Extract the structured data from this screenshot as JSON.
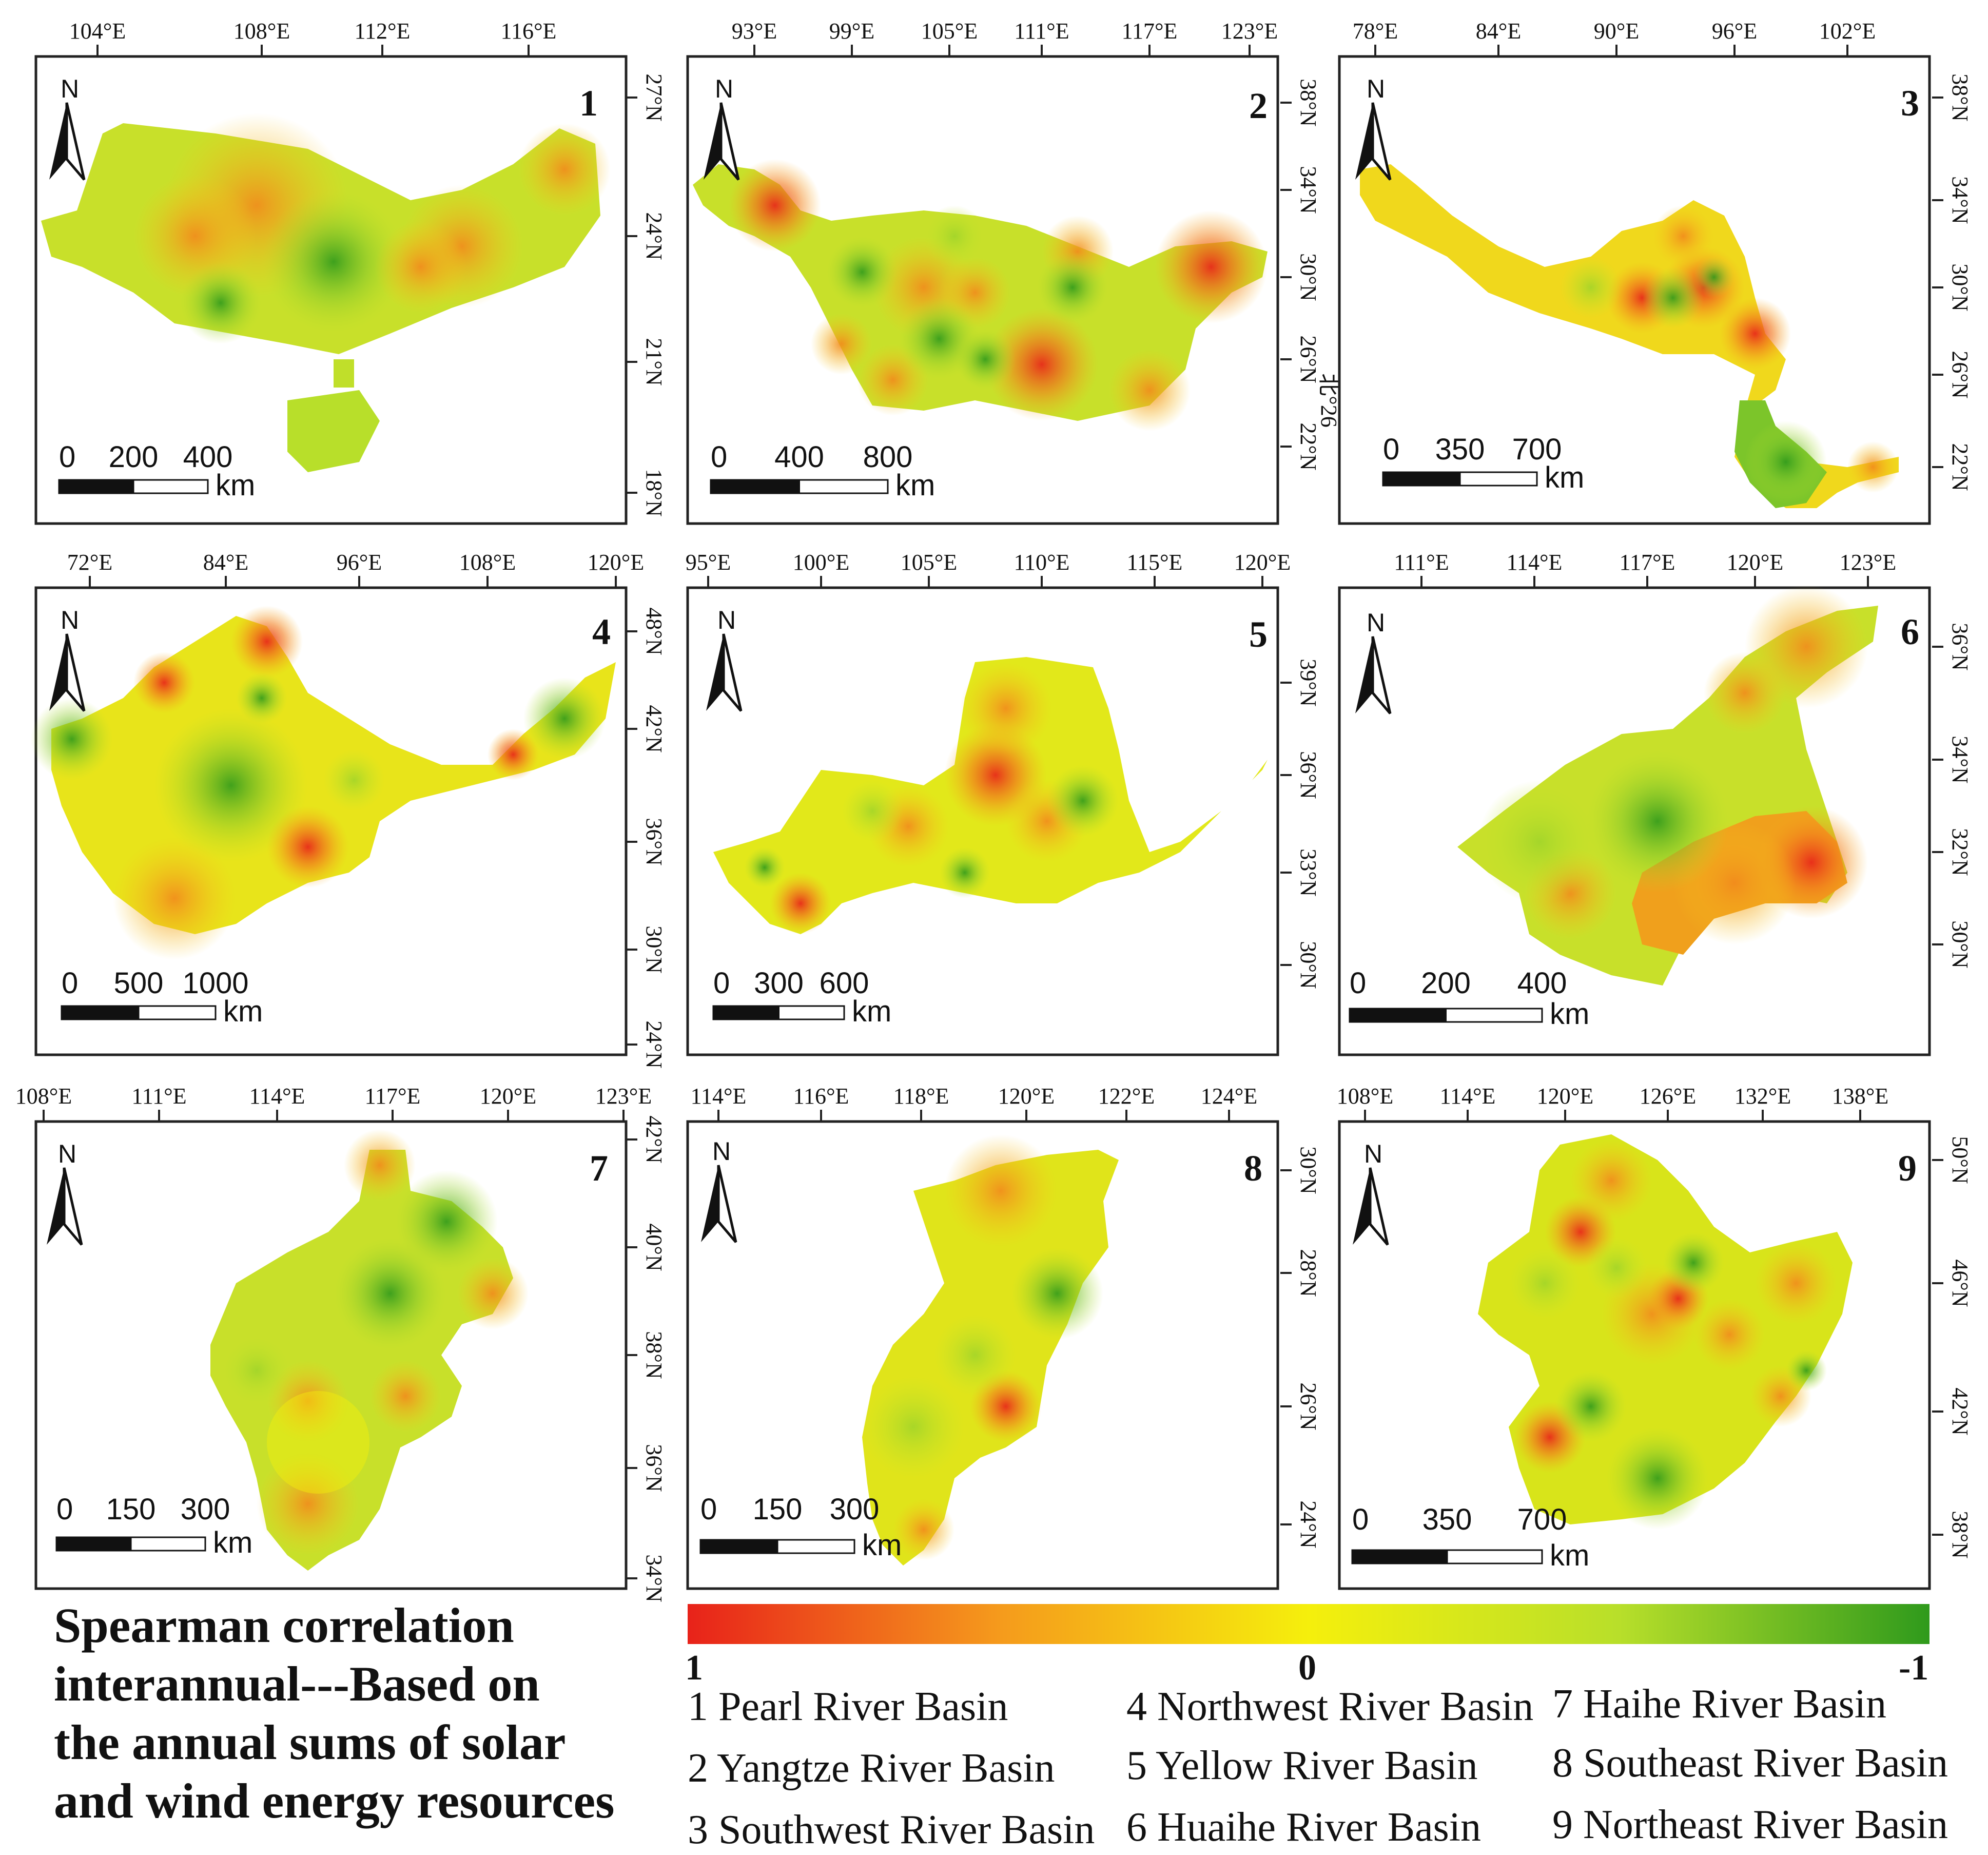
{
  "colors": {
    "positive": "#e8221a",
    "mid_orange": "#f59a1c",
    "neutral": "#f5ef0c",
    "light_green": "#b8df2a",
    "negative": "#2f9a1c",
    "frame": "#222222",
    "sea": "#ffffff"
  },
  "maps": [
    {
      "number": "1",
      "top_ticks": [
        "104°E",
        "108°E",
        "112°E",
        "116°E"
      ],
      "side_ticks": [
        "27°N",
        "24°N",
        "21°N",
        "18°N"
      ],
      "north_label": "N",
      "scale_labels": [
        "0",
        "200",
        "400"
      ],
      "scale_unit": "km"
    },
    {
      "number": "2",
      "top_ticks": [
        "93°E",
        "99°E",
        "105°E",
        "111°E",
        "117°E",
        "123°E"
      ],
      "side_ticks": [
        "38°N",
        "34°N",
        "30°N",
        "26°N",
        "22°N"
      ],
      "north_label": "N",
      "scale_labels": [
        "0",
        "400",
        "800"
      ],
      "scale_unit": "km"
    },
    {
      "number": "3",
      "top_ticks": [
        "78°E",
        "84°E",
        "90°E",
        "96°E",
        "102°E"
      ],
      "side_ticks": [
        "38°N",
        "34°N",
        "30°N",
        "26°N",
        "22°N"
      ],
      "north_label": "N",
      "scale_labels": [
        "0",
        "350",
        "700"
      ],
      "scale_unit": "km"
    },
    {
      "number": "4",
      "top_ticks": [
        "72°E",
        "84°E",
        "96°E",
        "108°E",
        "120°E"
      ],
      "side_ticks": [
        "48°N",
        "42°N",
        "36°N",
        "30°N",
        "24°N"
      ],
      "north_label": "N",
      "scale_labels": [
        "0",
        "500",
        "1000"
      ],
      "scale_unit": "km"
    },
    {
      "number": "5",
      "top_ticks": [
        "95°E",
        "100°E",
        "105°E",
        "110°E",
        "115°E",
        "120°E"
      ],
      "side_ticks": [
        "39°N",
        "36°N",
        "33°N",
        "30°N"
      ],
      "north_label": "N",
      "scale_labels": [
        "0",
        "300",
        "600"
      ],
      "scale_unit": "km"
    },
    {
      "number": "6",
      "top_ticks": [
        "111°E",
        "114°E",
        "117°E",
        "120°E",
        "123°E"
      ],
      "side_ticks": [
        "36°N",
        "34°N",
        "32°N",
        "30°N"
      ],
      "north_label": "N",
      "scale_labels": [
        "0",
        "200",
        "400"
      ],
      "scale_unit": "km"
    },
    {
      "number": "7",
      "top_ticks": [
        "108°E",
        "111°E",
        "114°E",
        "117°E",
        "120°E",
        "123°E"
      ],
      "side_ticks": [
        "42°N",
        "40°N",
        "38°N",
        "36°N",
        "34°N"
      ],
      "north_label": "N",
      "scale_labels": [
        "0",
        "150",
        "300"
      ],
      "scale_unit": "km"
    },
    {
      "number": "8",
      "top_ticks": [
        "114°E",
        "116°E",
        "118°E",
        "120°E",
        "122°E",
        "124°E"
      ],
      "side_ticks": [
        "30°N",
        "28°N",
        "26°N",
        "24°N"
      ],
      "north_label": "N",
      "scale_labels": [
        "0",
        "150",
        "300"
      ],
      "scale_unit": "km"
    },
    {
      "number": "9",
      "top_ticks": [
        "108°E",
        "114°E",
        "120°E",
        "126°E",
        "132°E",
        "138°E"
      ],
      "side_ticks": [
        "50°N",
        "46°N",
        "42°N",
        "38°N"
      ],
      "north_label": "N",
      "scale_labels": [
        "0",
        "350",
        "700"
      ],
      "scale_unit": "km"
    }
  ],
  "stray_label": "北°26",
  "title_lines": [
    "Spearman correlation",
    "interannual---Based on",
    "the annual sums of solar",
    "and wind energy resources"
  ],
  "colorbar": {
    "min_label": "1",
    "mid_label": "0",
    "max_label": "-1"
  },
  "legend": [
    "1 Pearl River Basin",
    "2 Yangtze River Basin",
    "3 Southwest River Basin",
    "4 Northwest River Basin",
    "5 Yellow River Basin",
    "6 Huaihe River Basin",
    "7 Haihe River Basin",
    "8 Southeast River Basin",
    "9 Northeast River Basin"
  ]
}
